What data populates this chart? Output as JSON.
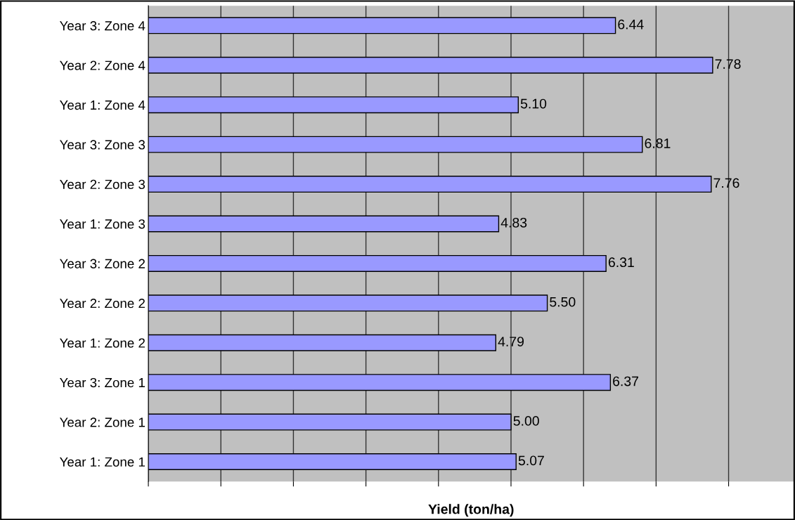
{
  "chart_data": {
    "type": "bar",
    "orientation": "horizontal",
    "xlabel": "Yield (ton/ha)",
    "categories": [
      "Year 3: Zone 4",
      "Year 2: Zone 4",
      "Year 1: Zone 4",
      "Year 3: Zone 3",
      "Year 2: Zone 3",
      "Year 1: Zone 3",
      "Year 3: Zone 2",
      "Year 2: Zone 2",
      "Year 1: Zone 2",
      "Year 3: Zone 1",
      "Year 2: Zone 1",
      "Year 1: Zone 1"
    ],
    "values": [
      6.44,
      7.78,
      5.1,
      6.81,
      7.76,
      4.83,
      6.31,
      5.5,
      4.79,
      6.37,
      5.0,
      5.07
    ],
    "value_labels": [
      "6.44",
      "7.78",
      "5.10",
      "6.81",
      "7.76",
      "4.83",
      "6.31",
      "5.50",
      "4.79",
      "6.37",
      "5.00",
      "5.07"
    ],
    "color": "#9999ff",
    "xlim": [
      0,
      8.9
    ],
    "xticks": [
      {
        "value": 0,
        "label": null
      },
      {
        "value": 1,
        "label": null
      },
      {
        "value": 2,
        "label": null
      },
      {
        "value": 3,
        "label": null
      },
      {
        "value": 4,
        "label": null
      },
      {
        "value": 5,
        "label": null
      },
      {
        "value": 6,
        "label": null
      },
      {
        "value": 7,
        "label": null
      },
      {
        "value": 8,
        "label": null
      }
    ],
    "grid": "x",
    "tick_labels": "y"
  }
}
